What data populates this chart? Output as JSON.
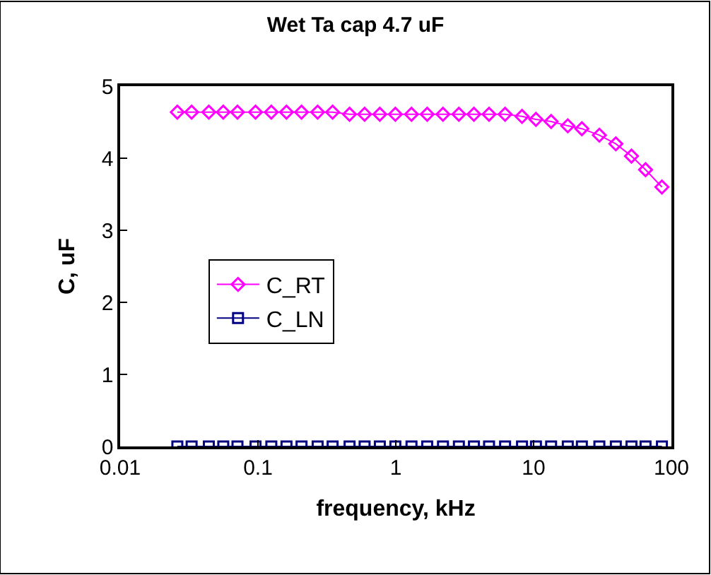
{
  "chart_data": {
    "type": "line",
    "title": "Wet Ta cap 4.7 uF",
    "xlabel": "frequency, kHz",
    "ylabel": "C, uF",
    "x": [
      0.026,
      0.033,
      0.044,
      0.056,
      0.071,
      0.096,
      0.125,
      0.161,
      0.207,
      0.271,
      0.348,
      0.462,
      0.594,
      0.766,
      0.993,
      1.3,
      1.69,
      2.2,
      2.87,
      3.69,
      4.75,
      6.21,
      8.24,
      10.4,
      13.4,
      17.7,
      22.4,
      30.0,
      39.5,
      51.3,
      64.9,
      85.3
    ],
    "series": [
      {
        "name": "C_RT",
        "color": "#ff00ff",
        "values": [
          4.64,
          4.64,
          4.64,
          4.64,
          4.64,
          4.64,
          4.64,
          4.64,
          4.64,
          4.64,
          4.64,
          4.61,
          4.61,
          4.61,
          4.61,
          4.61,
          4.61,
          4.61,
          4.61,
          4.61,
          4.61,
          4.61,
          4.58,
          4.54,
          4.51,
          4.45,
          4.41,
          4.32,
          4.2,
          4.03,
          3.84,
          3.6
        ],
        "marker": "diamond"
      },
      {
        "name": "C_LN",
        "color": "#000080",
        "values": [
          0,
          0,
          0,
          0,
          0,
          0,
          0,
          0,
          0,
          0,
          0,
          0,
          0,
          0,
          0,
          0,
          0,
          0,
          0,
          0,
          0,
          0,
          0,
          0,
          0,
          0,
          0,
          0,
          0,
          0,
          0,
          0
        ],
        "marker": "square"
      }
    ],
    "log": "x",
    "xlim": [
      0.01,
      100
    ],
    "xticks": [
      0.01,
      0.1,
      1,
      10,
      100
    ],
    "ylim": [
      0,
      5
    ],
    "yticks": [
      0,
      1,
      2,
      3,
      4,
      5
    ],
    "legend": "left",
    "line_style": "solid"
  }
}
